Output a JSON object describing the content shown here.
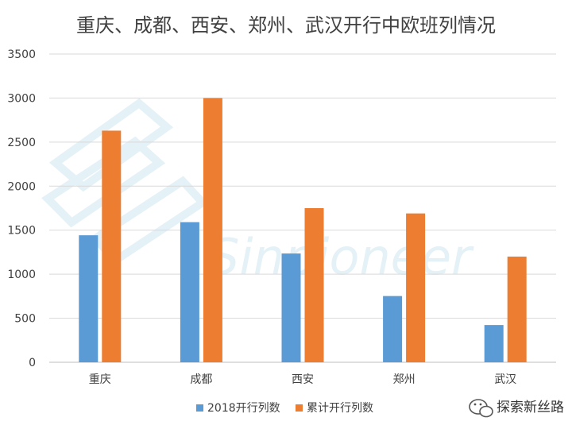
{
  "chart_data": {
    "type": "bar",
    "title": "重庆、成都、西安、郑州、武汉开行中欧班列情况",
    "categories": [
      "重庆",
      "成都",
      "西安",
      "郑州",
      "武汉"
    ],
    "series": [
      {
        "name": "2018开行列数",
        "values": [
          1442,
          1591,
          1235,
          752,
          423
        ],
        "color": "#5b9bd5"
      },
      {
        "name": "累计开行列数",
        "values": [
          2630,
          3000,
          1750,
          1690,
          1200
        ],
        "color": "#ed7d31"
      }
    ],
    "ylim": [
      0,
      3500
    ],
    "yticks": [
      0,
      500,
      1000,
      1500,
      2000,
      2500,
      3000,
      3500
    ],
    "grid": true,
    "legend_position": "bottom"
  },
  "watermark": "Sinpioneer",
  "brand": {
    "label": "探索新丝路",
    "icon": "wechat-icon"
  }
}
